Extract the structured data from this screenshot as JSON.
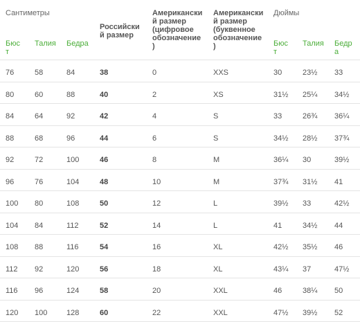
{
  "groups": {
    "cm": "Сантиметры",
    "inch": "Дюймы"
  },
  "headers": {
    "bust_cm": [
      "Бюс",
      "т"
    ],
    "waist_cm": "Талия",
    "hips_cm": "Бедра",
    "russian": [
      "Российски",
      "й размер"
    ],
    "us_num": [
      "Американски",
      "й размер",
      "(цифровое",
      "обозначение",
      ")"
    ],
    "us_letter": [
      "Американски",
      "й размер",
      "(буквенное",
      "обозначение",
      ")"
    ],
    "bust_in": [
      "Бюс",
      "т"
    ],
    "waist_in": "Талия",
    "hips_in": [
      "Бедр",
      "а"
    ]
  },
  "rows": [
    [
      "76",
      "58",
      "84",
      "38",
      "0",
      "XXS",
      "30",
      "23½",
      "33"
    ],
    [
      "80",
      "60",
      "88",
      "40",
      "2",
      "XS",
      "31½",
      "25¼",
      "34½"
    ],
    [
      "84",
      "64",
      "92",
      "42",
      "4",
      "S",
      "33",
      "26¾",
      "36¼"
    ],
    [
      "88",
      "68",
      "96",
      "44",
      "6",
      "S",
      "34½",
      "28½",
      "37¾"
    ],
    [
      "92",
      "72",
      "100",
      "46",
      "8",
      "M",
      "36¼",
      "30",
      "39½"
    ],
    [
      "96",
      "76",
      "104",
      "48",
      "10",
      "M",
      "37¾",
      "31½",
      "41"
    ],
    [
      "100",
      "80",
      "108",
      "50",
      "12",
      "L",
      "39½",
      "33",
      "42½"
    ],
    [
      "104",
      "84",
      "112",
      "52",
      "14",
      "L",
      "41",
      "34½",
      "44"
    ],
    [
      "108",
      "88",
      "116",
      "54",
      "16",
      "XL",
      "42½",
      "35½",
      "46"
    ],
    [
      "112",
      "92",
      "120",
      "56",
      "18",
      "XL",
      "43¼",
      "37",
      "47½"
    ],
    [
      "116",
      "96",
      "124",
      "58",
      "20",
      "XXL",
      "46",
      "38¼",
      "50"
    ],
    [
      "120",
      "100",
      "128",
      "60",
      "22",
      "XXL",
      "47½",
      "39½",
      "52"
    ]
  ]
}
